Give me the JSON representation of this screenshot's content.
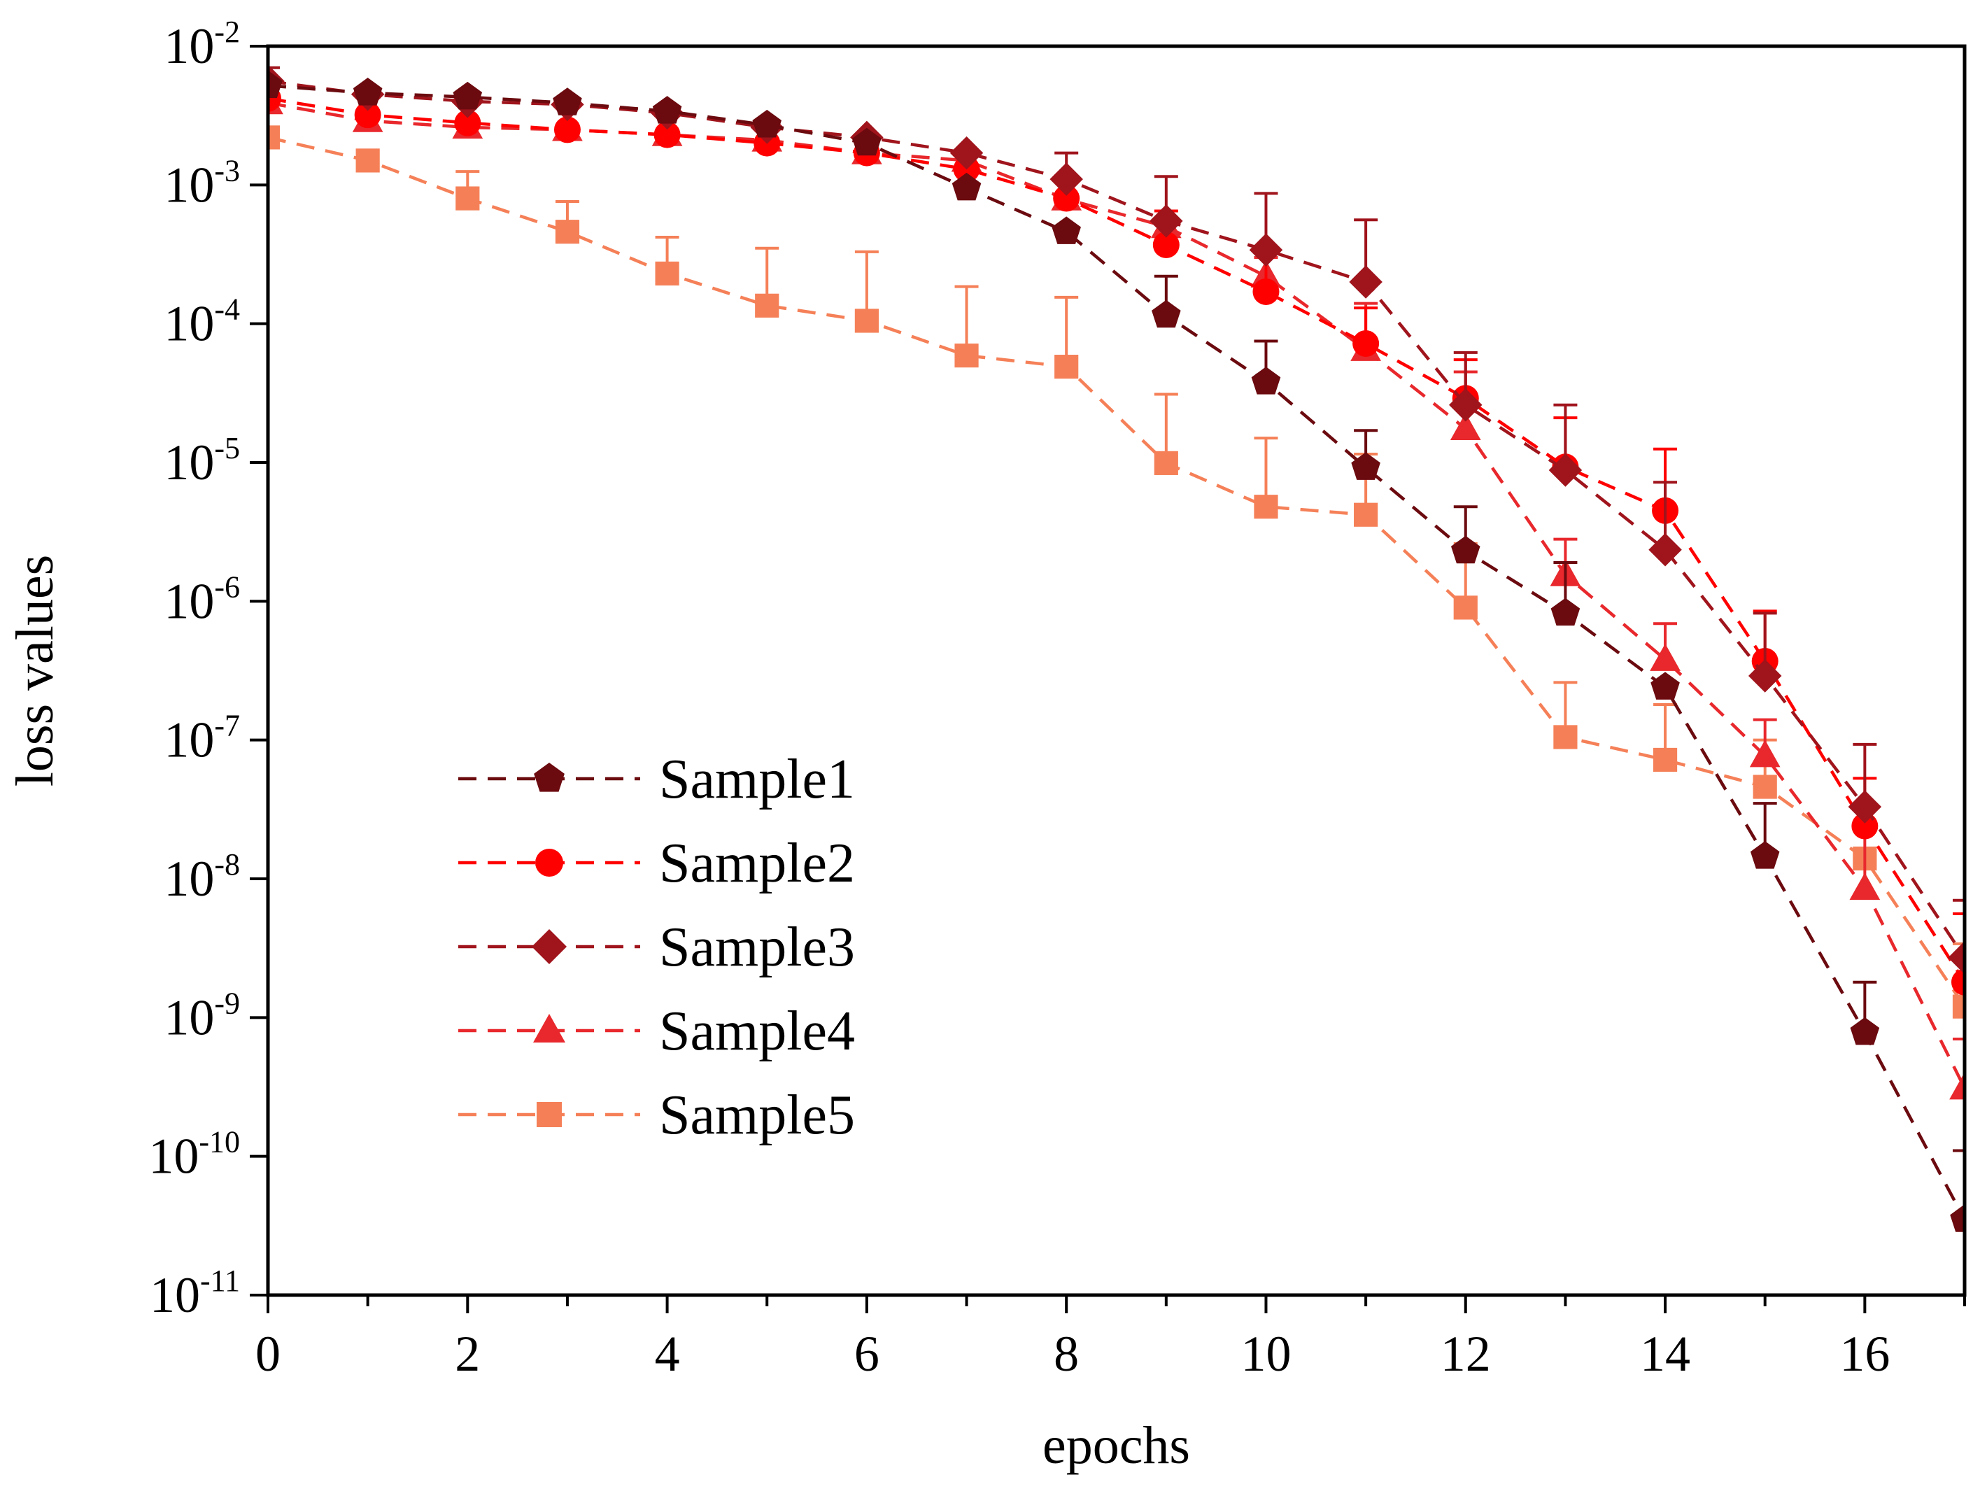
{
  "chart_data": {
    "type": "line",
    "xlabel": "epochs",
    "ylabel": "loss values",
    "yscale": "log",
    "xlim": [
      0,
      17
    ],
    "ylim": [
      1e-11,
      0.01
    ],
    "xticks": [
      "0",
      "2",
      "4",
      "6",
      "8",
      "10",
      "12",
      "14",
      "16"
    ],
    "ytick_base": "10",
    "ytick_exponents": [
      "-11",
      "-10",
      "-9",
      "-8",
      "-7",
      "-6",
      "-5",
      "-4",
      "-3",
      "-2"
    ],
    "grid": false,
    "legend_position": "lower-left",
    "x": [
      0,
      1,
      2,
      3,
      4,
      5,
      6,
      7,
      8,
      9,
      10,
      11,
      12,
      13,
      14,
      15,
      16,
      17
    ],
    "series": [
      {
        "name": "Sample1",
        "color": "#6b0a0f",
        "marker": "pentagon",
        "values": [
          0.0052,
          0.0046,
          0.0043,
          0.0039,
          0.0034,
          0.0027,
          0.002,
          0.00095,
          0.00046,
          0.000115,
          3.8e-05,
          9.2e-06,
          2.3e-06,
          8.2e-07,
          2.4e-07,
          1.45e-08,
          7.8e-10,
          3.5e-11
        ],
        "errors": [
          null,
          null,
          null,
          null,
          null,
          null,
          null,
          null,
          null,
          0.00022,
          7.5e-05,
          1.7e-05,
          4.8e-06,
          1.9e-06,
          null,
          3.5e-08,
          1.8e-09,
          1.1e-10
        ]
      },
      {
        "name": "Sample2",
        "color": "#ff0000",
        "marker": "circle",
        "values": [
          0.0042,
          0.0032,
          0.0028,
          0.0025,
          0.0023,
          0.002,
          0.0017,
          0.0013,
          0.0008,
          0.00037,
          0.00017,
          7.2e-05,
          2.9e-05,
          9.3e-06,
          4.5e-06,
          3.7e-07,
          2.4e-08,
          1.8e-09
        ],
        "errors": [
          null,
          null,
          null,
          null,
          null,
          null,
          null,
          null,
          null,
          0.00065,
          0.00035,
          0.00013,
          5.5e-05,
          2.1e-05,
          1.25e-05,
          8.5e-07,
          5.3e-08,
          5.6e-09
        ]
      },
      {
        "name": "Sample3",
        "color": "#a0141c",
        "marker": "diamond",
        "values": [
          0.0056,
          0.0045,
          0.004,
          0.0038,
          0.0033,
          0.0026,
          0.0022,
          0.0017,
          0.0011,
          0.00055,
          0.00034,
          0.0002,
          2.6e-05,
          8.8e-06,
          2.35e-06,
          2.9e-07,
          3.3e-08,
          2.7e-09
        ],
        "errors": [
          0.007,
          null,
          null,
          null,
          null,
          null,
          null,
          null,
          0.0017,
          0.00115,
          0.00087,
          0.00056,
          6.2e-05,
          2.6e-05,
          7.2e-06,
          8.2e-07,
          9.3e-08,
          7e-09
        ]
      },
      {
        "name": "Sample4",
        "color": "#e8282c",
        "marker": "triangle",
        "values": [
          0.0039,
          0.0029,
          0.0026,
          0.0025,
          0.0023,
          0.0021,
          0.0017,
          0.0015,
          0.00079,
          0.0005,
          0.00022,
          6.5e-05,
          1.75e-05,
          1.55e-06,
          3.8e-07,
          7.7e-08,
          8.5e-09,
          3.1e-10
        ],
        "errors": [
          null,
          null,
          null,
          null,
          null,
          null,
          null,
          null,
          null,
          null,
          0.0003,
          0.00014,
          4.5e-05,
          2.8e-06,
          6.9e-07,
          1.4e-07,
          3.2e-08,
          7e-10
        ]
      },
      {
        "name": "Sample5",
        "color": "#f58058",
        "marker": "square",
        "values": [
          0.0022,
          0.0015,
          0.0008,
          0.00046,
          0.00023,
          0.000135,
          0.000105,
          5.9e-05,
          4.9e-05,
          9.9e-06,
          4.8e-06,
          4.2e-06,
          9e-07,
          1.05e-07,
          7.2e-08,
          4.6e-08,
          1.4e-08,
          1.2e-09
        ],
        "errors": [
          null,
          null,
          0.00125,
          0.00076,
          0.00042,
          0.00035,
          0.00033,
          0.000185,
          0.000155,
          3.1e-05,
          1.5e-05,
          1.15e-05,
          2.6e-06,
          2.6e-07,
          1.8e-07,
          1e-07,
          null,
          3.4e-09
        ]
      }
    ]
  }
}
